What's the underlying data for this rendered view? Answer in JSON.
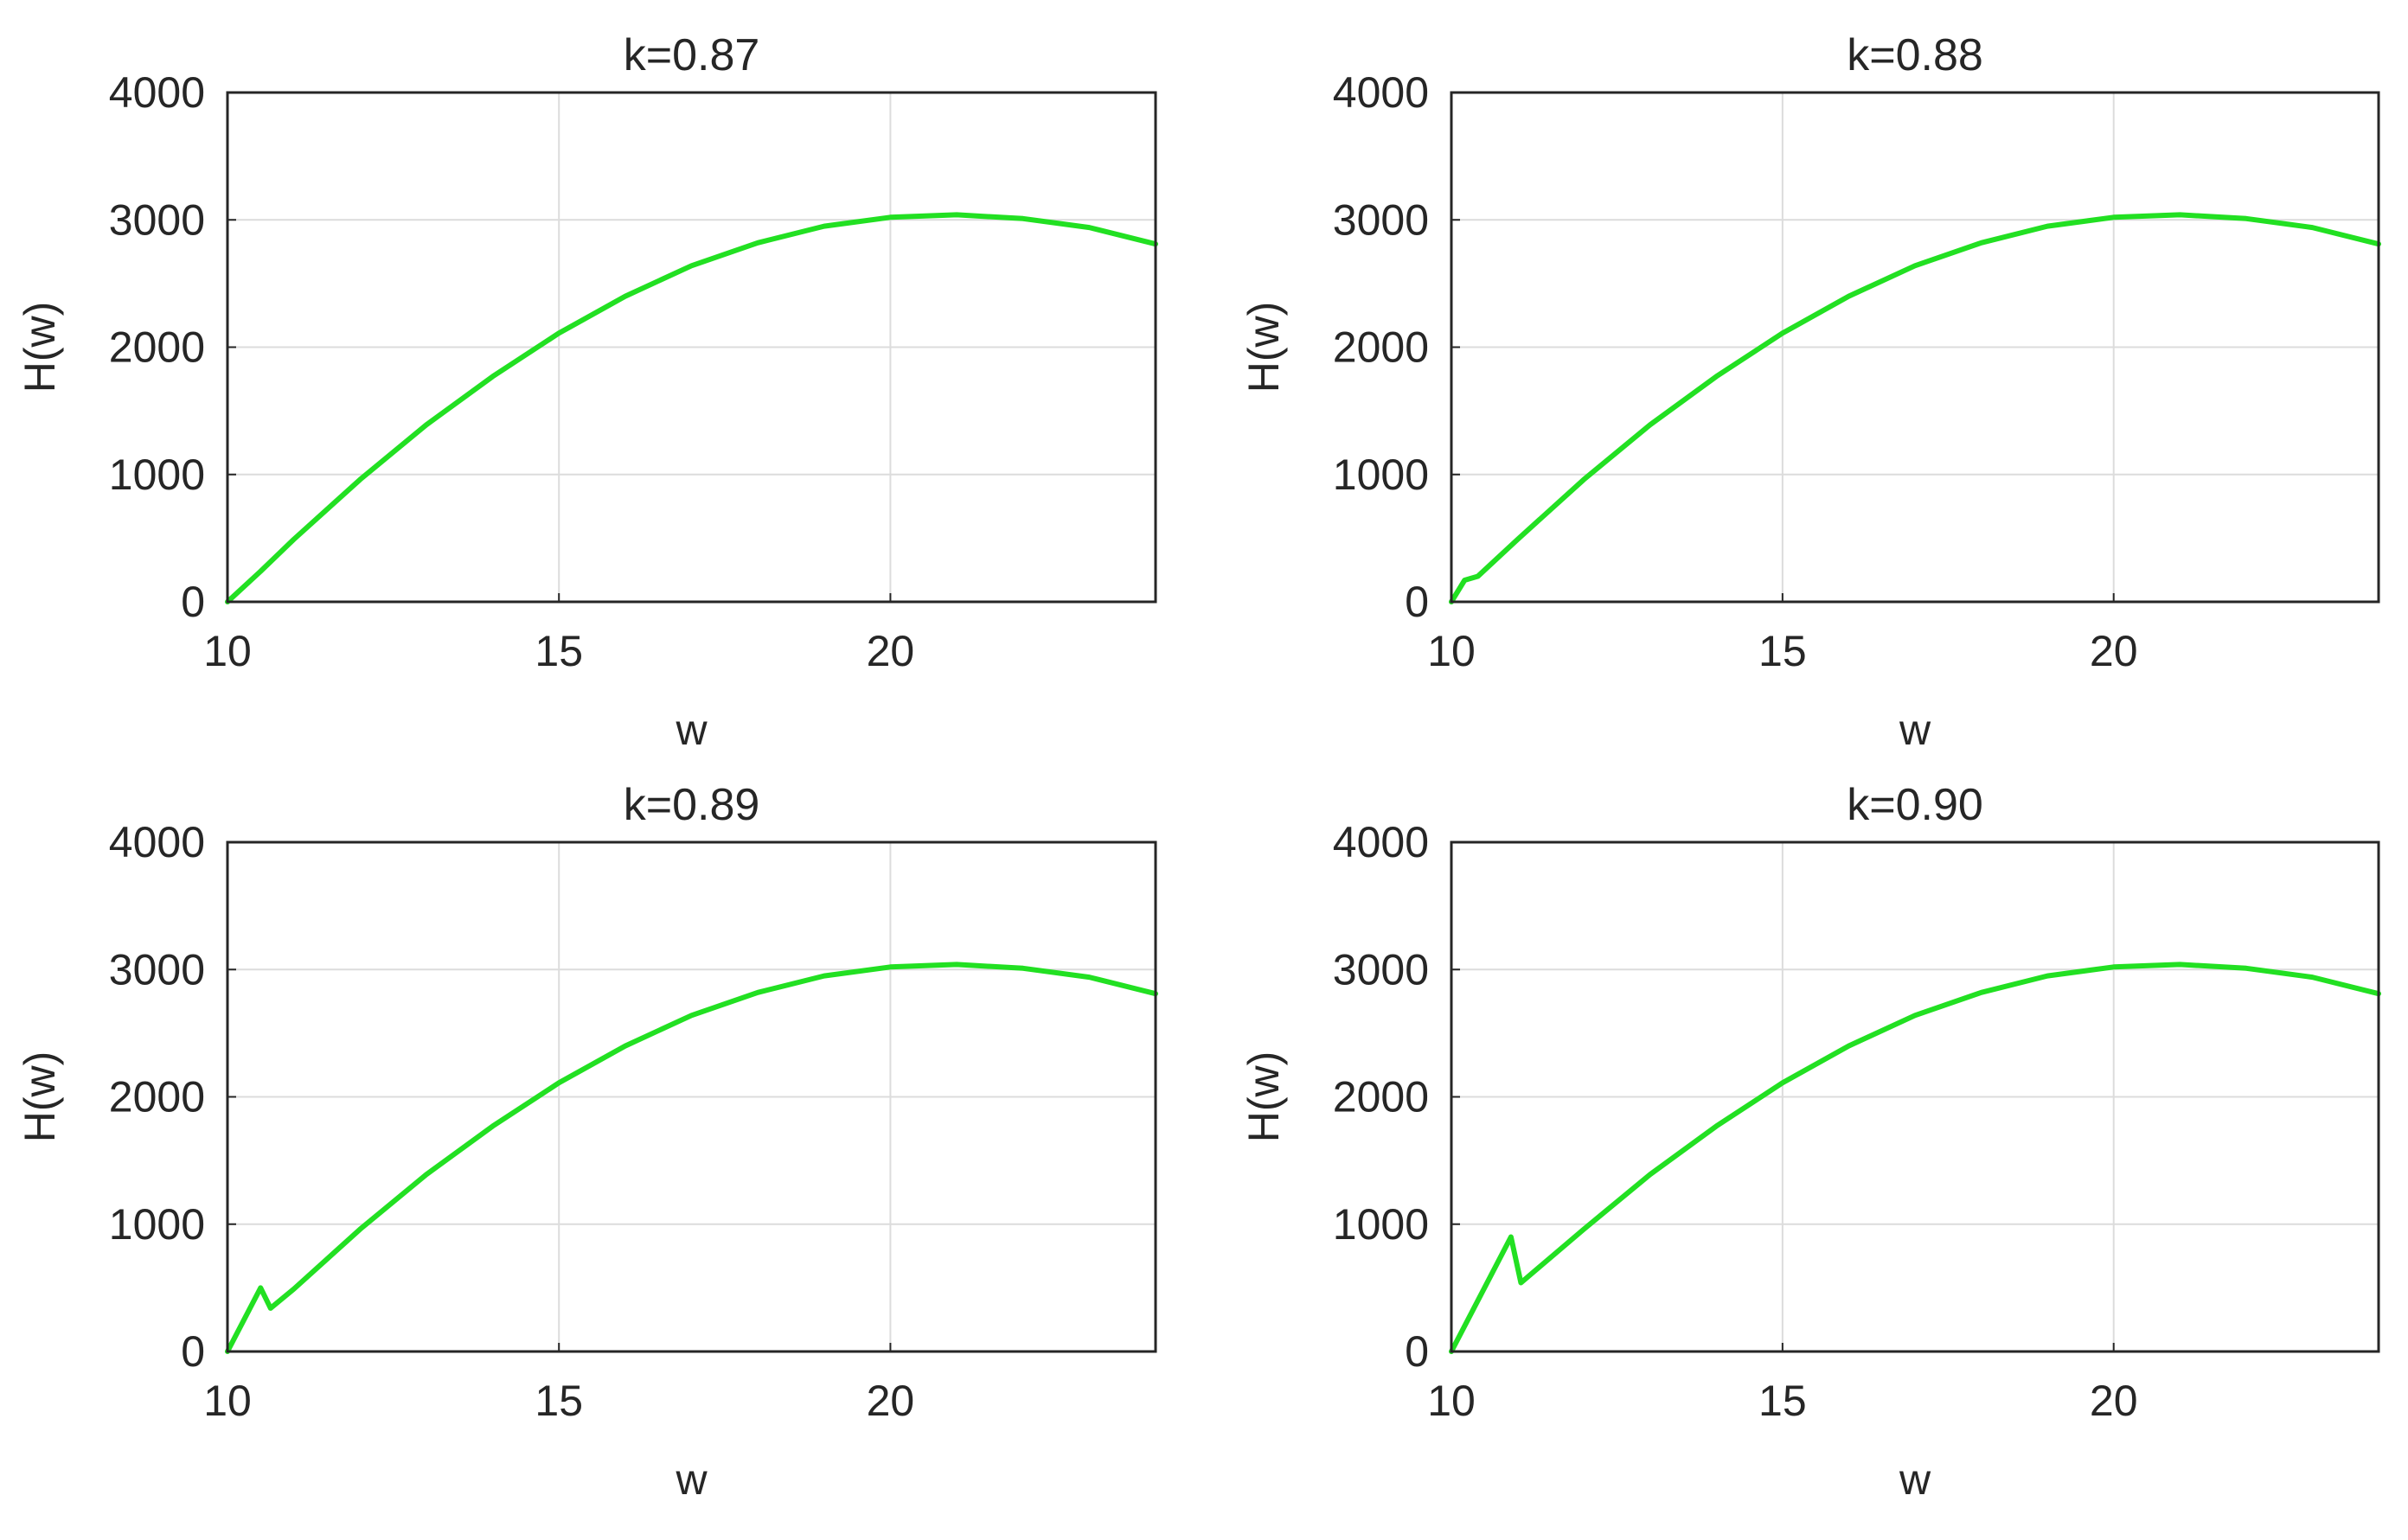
{
  "colors": {
    "line": "#22e022",
    "axis": "#262626",
    "grid": "#dcdcdc"
  },
  "chart_data": [
    {
      "type": "line",
      "title": "k=0.87",
      "xlabel": "w",
      "ylabel": "H(w)",
      "xlim": [
        10,
        24
      ],
      "ylim": [
        0,
        4000
      ],
      "xticks": [
        10,
        15,
        20
      ],
      "yticks": [
        0,
        1000,
        2000,
        3000,
        4000
      ],
      "grid": true,
      "series": [
        {
          "x": [
            10,
            10.5,
            11,
            12,
            13,
            14,
            15,
            16,
            17,
            18,
            19,
            20,
            21,
            22,
            23,
            24
          ],
          "y": [
            0,
            240,
            490,
            960,
            1390,
            1770,
            2110,
            2400,
            2640,
            2820,
            2950,
            3020,
            3040,
            3010,
            2940,
            2810
          ]
        }
      ]
    },
    {
      "type": "line",
      "title": "k=0.88",
      "xlabel": "w",
      "ylabel": "H(w)",
      "xlim": [
        10,
        24
      ],
      "ylim": [
        0,
        4000
      ],
      "xticks": [
        10,
        15,
        20
      ],
      "yticks": [
        0,
        1000,
        2000,
        3000,
        4000
      ],
      "grid": true,
      "series": [
        {
          "x": [
            10,
            10.2,
            10.4,
            11,
            12,
            13,
            14,
            15,
            16,
            17,
            18,
            19,
            20,
            21,
            22,
            23,
            24
          ],
          "y": [
            0,
            170,
            200,
            490,
            960,
            1390,
            1770,
            2110,
            2400,
            2640,
            2820,
            2950,
            3020,
            3040,
            3010,
            2940,
            2810
          ]
        }
      ]
    },
    {
      "type": "line",
      "title": "k=0.89",
      "xlabel": "w",
      "ylabel": "H(w)",
      "xlim": [
        10,
        24
      ],
      "ylim": [
        0,
        4000
      ],
      "xticks": [
        10,
        15,
        20
      ],
      "yticks": [
        0,
        1000,
        2000,
        3000,
        4000
      ],
      "grid": true,
      "series": [
        {
          "x": [
            10,
            10.5,
            10.65,
            11,
            12,
            13,
            14,
            15,
            16,
            17,
            18,
            19,
            20,
            21,
            22,
            23,
            24
          ],
          "y": [
            0,
            500,
            340,
            490,
            960,
            1390,
            1770,
            2110,
            2400,
            2640,
            2820,
            2950,
            3020,
            3040,
            3010,
            2940,
            2810
          ]
        }
      ]
    },
    {
      "type": "line",
      "title": "k=0.90",
      "xlabel": "w",
      "ylabel": "H(w)",
      "xlim": [
        10,
        24
      ],
      "ylim": [
        0,
        4000
      ],
      "xticks": [
        10,
        15,
        20
      ],
      "yticks": [
        0,
        1000,
        2000,
        3000,
        4000
      ],
      "grid": true,
      "series": [
        {
          "x": [
            10,
            10.9,
            11.05,
            12,
            13,
            14,
            15,
            16,
            17,
            18,
            19,
            20,
            21,
            22,
            23,
            24
          ],
          "y": [
            0,
            900,
            540,
            960,
            1390,
            1770,
            2110,
            2400,
            2640,
            2820,
            2950,
            3020,
            3040,
            3010,
            2940,
            2810
          ]
        }
      ]
    }
  ]
}
